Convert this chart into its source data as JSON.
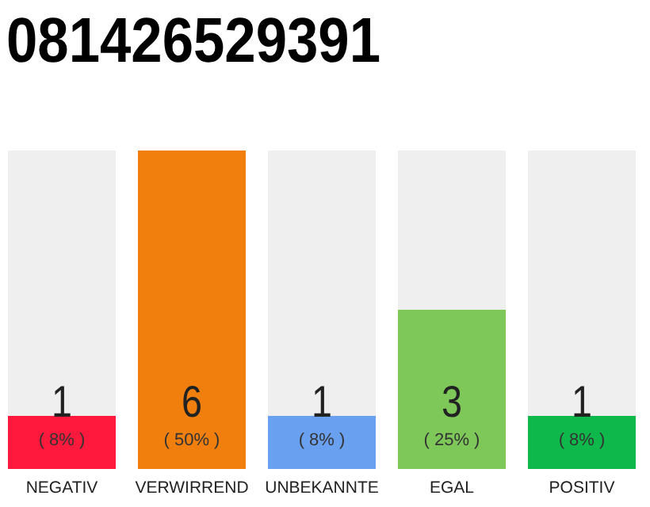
{
  "chart_data": {
    "type": "bar",
    "title": "081426529391",
    "categories": [
      "NEGATIV",
      "VERWIRREND",
      "UNBEKANNTE",
      "EGAL",
      "POSITIV"
    ],
    "values": [
      1,
      6,
      1,
      3,
      1
    ],
    "colors": [
      "#ff1a3d",
      "#f07f0e",
      "#6aa0f0",
      "#7ec85a",
      "#0fb84a"
    ],
    "data_labels": true,
    "annotations": [
      "( 8% )",
      "( 50% )",
      "( 8% )",
      "( 25% )",
      "( 8% )"
    ]
  }
}
